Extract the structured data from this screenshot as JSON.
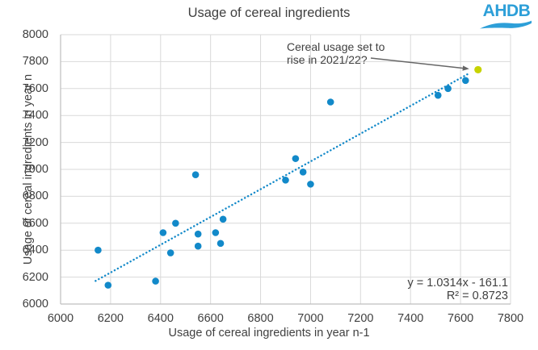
{
  "header": {
    "logo_text": "AHDB"
  },
  "chart_data": {
    "type": "scatter",
    "title": "Usage of cereal ingredients",
    "xlabel": "Usage of cereal ingredients in year n-1",
    "ylabel": "Usage of cereal ingredients in year n",
    "xlim": [
      6000,
      7800
    ],
    "ylim": [
      6000,
      8000
    ],
    "x_ticks": [
      6000,
      6200,
      6400,
      6600,
      6800,
      7000,
      7200,
      7400,
      7600,
      7800
    ],
    "y_ticks": [
      6000,
      6200,
      6400,
      6600,
      6800,
      7000,
      7200,
      7400,
      7600,
      7800,
      8000
    ],
    "grid": true,
    "legend_position": "none",
    "colors": {
      "point_blue": "#1289c9",
      "point_yellow": "#c7d300",
      "grid": "#d9d9d9",
      "axis": "#bfbfbf",
      "text": "#404040",
      "logo_blue": "#2d9fd8",
      "arrow": "#666666"
    },
    "series": [
      {
        "name": "historic-usage",
        "color_key": "point_blue",
        "marker_radius": 4.3,
        "points": [
          [
            6150,
            6400
          ],
          [
            6190,
            6140
          ],
          [
            6380,
            6170
          ],
          [
            6410,
            6530
          ],
          [
            6440,
            6380
          ],
          [
            6460,
            6600
          ],
          [
            6540,
            6960
          ],
          [
            6550,
            6520
          ],
          [
            6550,
            6430
          ],
          [
            6620,
            6530
          ],
          [
            6640,
            6450
          ],
          [
            6650,
            6630
          ],
          [
            6900,
            6920
          ],
          [
            6940,
            7080
          ],
          [
            6970,
            6980
          ],
          [
            7000,
            6890
          ],
          [
            7080,
            7500
          ],
          [
            7510,
            7550
          ],
          [
            7550,
            7600
          ],
          [
            7620,
            7660
          ]
        ]
      },
      {
        "name": "forecast-2021-22",
        "color_key": "point_yellow",
        "marker_radius": 4.6,
        "points": [
          [
            7670,
            7740
          ]
        ]
      }
    ],
    "trendline": {
      "slope": 1.0314,
      "intercept": -161.1,
      "x_range": [
        6140,
        7630
      ],
      "style": "dotted",
      "equation_label": "y = 1.0314x - 161.1",
      "r2_label": "R² = 0.8723"
    },
    "annotation": {
      "text_line1": "Cereal usage set to",
      "text_line2": "rise in 2021/22?",
      "points_to": [
        7670,
        7740
      ]
    }
  }
}
